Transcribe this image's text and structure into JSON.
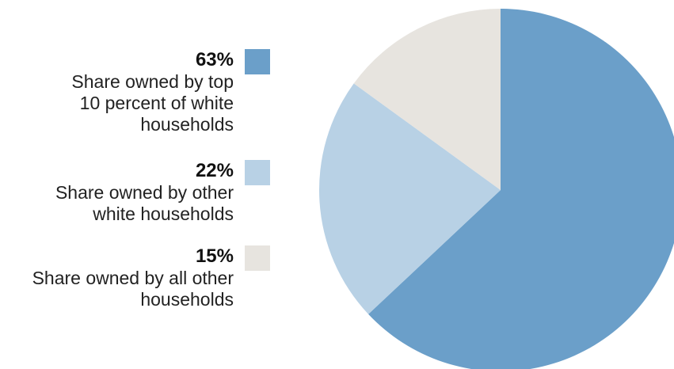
{
  "chart_data": {
    "type": "pie",
    "slices": [
      {
        "value": 63,
        "value_label": "63%",
        "label": "Share owned by top\n10 percent of white\nhouseholds",
        "color": "#6b9fc9"
      },
      {
        "value": 22,
        "value_label": "22%",
        "label": "Share owned by other\nwhite households",
        "color": "#b8d1e5"
      },
      {
        "value": 15,
        "value_label": "15%",
        "label": "Share owned by all other\nhouseholds",
        "color": "#e7e4df"
      }
    ],
    "legend_position": "left",
    "start_angle": "12 o'clock, clockwise"
  }
}
